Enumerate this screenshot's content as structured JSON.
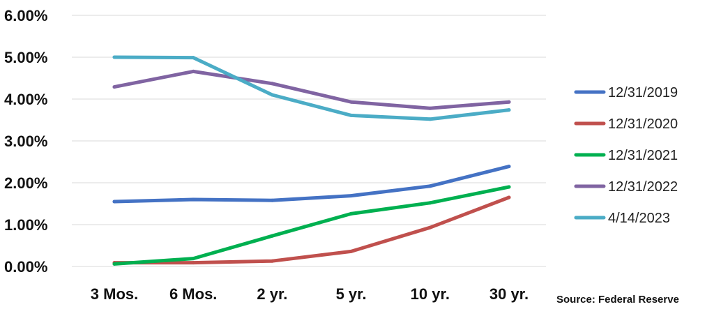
{
  "chart_data": {
    "type": "line",
    "categories": [
      "3 Mos.",
      "6 Mos.",
      "2 yr.",
      "5 yr.",
      "10 yr.",
      "30 yr."
    ],
    "y_ticks": [
      "0.00%",
      "1.00%",
      "2.00%",
      "3.00%",
      "4.00%",
      "5.00%",
      "6.00%"
    ],
    "ylim": [
      0,
      6
    ],
    "grid": "horizontal",
    "legend_position": "right",
    "series": [
      {
        "name": "12/31/2019",
        "color": "#4472C4",
        "values": [
          1.55,
          1.6,
          1.58,
          1.69,
          1.92,
          2.39
        ]
      },
      {
        "name": "12/31/2020",
        "color": "#C0504D",
        "values": [
          0.09,
          0.09,
          0.13,
          0.36,
          0.93,
          1.65
        ]
      },
      {
        "name": "12/31/2021",
        "color": "#00B050",
        "values": [
          0.06,
          0.19,
          0.73,
          1.26,
          1.52,
          1.9
        ]
      },
      {
        "name": "12/31/2022",
        "color": "#8064A2",
        "values": [
          4.29,
          4.66,
          4.37,
          3.93,
          3.78,
          3.93
        ]
      },
      {
        "name": "4/14/2023",
        "color": "#4BACC6",
        "values": [
          5.0,
          4.99,
          4.1,
          3.61,
          3.52,
          3.74
        ]
      }
    ],
    "source": "Source: Federal Reserve"
  }
}
